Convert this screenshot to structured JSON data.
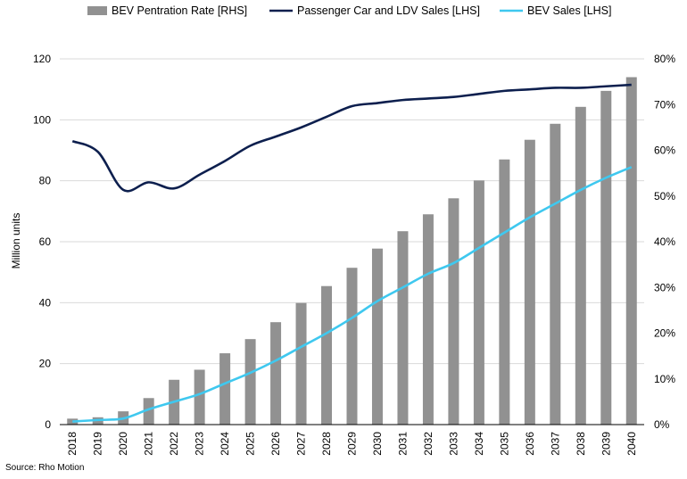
{
  "chart_data": {
    "type": "bar",
    "title": "",
    "categories": [
      "2018",
      "2019",
      "2020",
      "2021",
      "2022",
      "2023",
      "2024",
      "2025",
      "2026",
      "2027",
      "2028",
      "2029",
      "2030",
      "2031",
      "2032",
      "2033",
      "2034",
      "2035",
      "2036",
      "2037",
      "2038",
      "2039",
      "2040"
    ],
    "series": [
      {
        "name": "BEV Pentration Rate [RHS]",
        "type": "bar",
        "axis": "right",
        "color": "#919191",
        "values": [
          1.3,
          1.6,
          2.9,
          5.8,
          9.8,
          12.0,
          15.6,
          18.7,
          22.4,
          26.6,
          30.3,
          34.3,
          38.5,
          42.3,
          46.0,
          49.5,
          53.4,
          58.0,
          62.3,
          65.8,
          69.5,
          73.0,
          76.0
        ]
      },
      {
        "name": "Passenger Car and LDV Sales [LHS]",
        "type": "line",
        "axis": "left",
        "color": "#0d1f4e",
        "values": [
          93,
          89.5,
          77,
          79.5,
          77.5,
          82,
          86.5,
          91.5,
          94.5,
          97.5,
          101,
          104.5,
          105.5,
          106.5,
          107,
          107.5,
          108.5,
          109.5,
          110,
          110.5,
          110.5,
          111,
          111.5
        ]
      },
      {
        "name": "BEV Sales [LHS]",
        "type": "line",
        "axis": "left",
        "color": "#3fc8ef",
        "values": [
          1,
          1.5,
          2,
          5,
          7.5,
          10,
          13.5,
          17,
          21,
          25.5,
          30,
          35,
          40.5,
          45,
          49.5,
          53,
          58,
          63,
          68,
          72.5,
          77,
          81,
          84.5
        ]
      }
    ],
    "y_left": {
      "label": "Million units",
      "ylim": [
        0,
        120
      ],
      "ticks": [
        "0",
        "20",
        "40",
        "60",
        "80",
        "100",
        "120"
      ],
      "tick_values": [
        0,
        20,
        40,
        60,
        80,
        100,
        120
      ]
    },
    "y_right": {
      "ylim": [
        0,
        80
      ],
      "ticks": [
        "0%",
        "10%",
        "20%",
        "30%",
        "40%",
        "50%",
        "60%",
        "70%",
        "80%"
      ],
      "tick_values": [
        0,
        10,
        20,
        30,
        40,
        50,
        60,
        70,
        80
      ]
    },
    "grid": true,
    "legend_position": "top"
  },
  "source_text": "Source: Rho Motion"
}
